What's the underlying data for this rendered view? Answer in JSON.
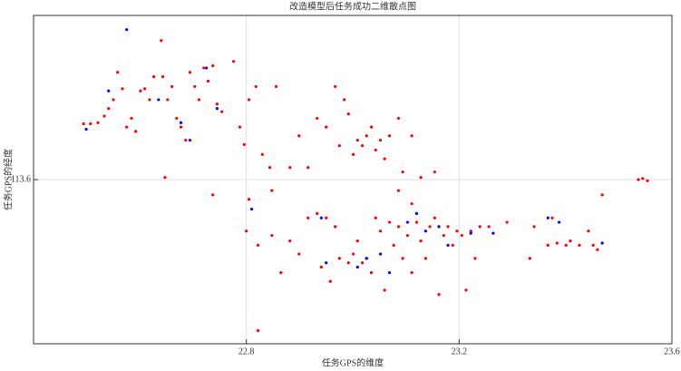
{
  "chart_data": {
    "type": "scatter",
    "title": "改造模型后任务成功二维散点图",
    "x_label": "任务GPS的维度",
    "y_label": "任务GPS的经度",
    "xlim": [
      22.4,
      23.6
    ],
    "ylim": [
      113.45,
      113.75
    ],
    "xticks": [
      22.8,
      23.2,
      23.6
    ],
    "yticks": [
      113.6
    ],
    "grid": true,
    "series": [
      {
        "color": "#ff0000",
        "x": [
          22.494,
          22.507,
          22.521,
          22.533,
          22.541,
          22.55,
          22.558,
          22.567,
          22.575,
          22.584,
          22.592,
          22.601,
          22.609,
          22.618,
          22.626,
          22.64,
          22.643,
          22.652,
          22.66,
          22.669,
          22.677,
          22.686,
          22.694,
          22.703,
          22.711,
          22.72,
          22.728,
          22.737,
          22.745,
          22.754,
          22.776,
          22.788,
          22.796,
          22.805,
          22.818,
          22.83,
          22.844,
          22.856,
          22.647,
          22.737,
          22.882,
          22.899,
          22.916,
          22.933,
          22.95,
          22.967,
          22.975,
          22.992,
          23.001,
          23.009,
          23.018,
          23.026,
          23.035,
          23.043,
          23.052,
          23.06,
          23.069,
          23.086,
          23.094,
          23.111,
          23.128,
          23.154,
          22.984,
          22.8,
          22.805,
          22.822,
          22.848,
          22.865,
          22.882,
          22.899,
          22.916,
          22.933,
          22.941,
          22.95,
          22.958,
          22.967,
          22.975,
          22.992,
          23.001,
          23.009,
          23.018,
          23.026,
          23.035,
          23.043,
          23.052,
          23.06,
          23.069,
          23.077,
          23.086,
          23.094,
          23.103,
          23.111,
          23.12,
          23.128,
          23.137,
          23.145,
          23.154,
          23.162,
          23.171,
          23.179,
          23.188,
          23.196,
          23.205,
          23.213,
          23.222,
          23.23,
          23.239,
          23.256,
          23.29,
          22.822,
          22.848,
          23.111,
          23.086,
          23.333,
          23.341,
          23.367,
          23.375,
          23.384,
          23.401,
          23.409,
          23.426,
          23.443,
          23.452,
          23.46,
          23.469,
          23.537,
          23.545,
          23.554
        ],
        "y": [
          113.651,
          113.651,
          113.652,
          113.658,
          113.665,
          113.673,
          113.698,
          113.683,
          113.648,
          113.656,
          113.644,
          113.681,
          113.683,
          113.673,
          113.694,
          113.727,
          113.694,
          113.673,
          113.685,
          113.656,
          113.648,
          113.636,
          113.698,
          113.685,
          113.673,
          113.702,
          113.69,
          113.704,
          113.669,
          113.662,
          113.708,
          113.648,
          113.632,
          113.673,
          113.685,
          113.623,
          113.611,
          113.685,
          113.602,
          113.586,
          113.611,
          113.64,
          113.611,
          113.656,
          113.648,
          113.685,
          113.631,
          113.66,
          113.623,
          113.636,
          113.631,
          113.64,
          113.648,
          113.627,
          113.636,
          113.619,
          113.64,
          113.656,
          113.607,
          113.64,
          113.602,
          113.607,
          113.673,
          113.553,
          113.582,
          113.54,
          113.549,
          113.515,
          113.544,
          113.532,
          113.565,
          113.569,
          113.52,
          113.565,
          113.507,
          113.557,
          113.528,
          113.524,
          113.532,
          113.544,
          113.524,
          113.528,
          113.515,
          113.565,
          113.553,
          113.499,
          113.561,
          113.54,
          113.557,
          113.528,
          113.549,
          113.515,
          113.561,
          113.544,
          113.528,
          113.557,
          113.565,
          113.495,
          113.549,
          113.557,
          113.54,
          113.553,
          113.549,
          113.499,
          113.553,
          113.528,
          113.557,
          113.557,
          113.561,
          113.462,
          113.59,
          113.578,
          113.59,
          113.528,
          113.557,
          113.54,
          113.565,
          113.542,
          113.54,
          113.544,
          113.54,
          113.553,
          113.54,
          113.536,
          113.586,
          113.6,
          113.601,
          113.599
        ]
      },
      {
        "color": "#0000ff",
        "x": [
          22.575,
          22.499,
          22.541,
          22.635,
          22.677,
          22.694,
          22.725,
          22.745,
          22.81,
          22.941,
          22.95,
          23.009,
          23.026,
          23.052,
          23.069,
          23.103,
          23.12,
          23.137,
          23.162,
          23.179,
          23.222,
          23.264,
          23.367,
          23.388,
          23.469
        ],
        "y": [
          113.737,
          113.646,
          113.681,
          113.673,
          113.652,
          113.636,
          113.702,
          113.665,
          113.573,
          113.565,
          113.524,
          113.52,
          113.528,
          113.532,
          113.515,
          113.561,
          113.569,
          113.553,
          113.557,
          113.54,
          113.551,
          113.551,
          113.565,
          113.561,
          113.542
        ]
      }
    ]
  }
}
